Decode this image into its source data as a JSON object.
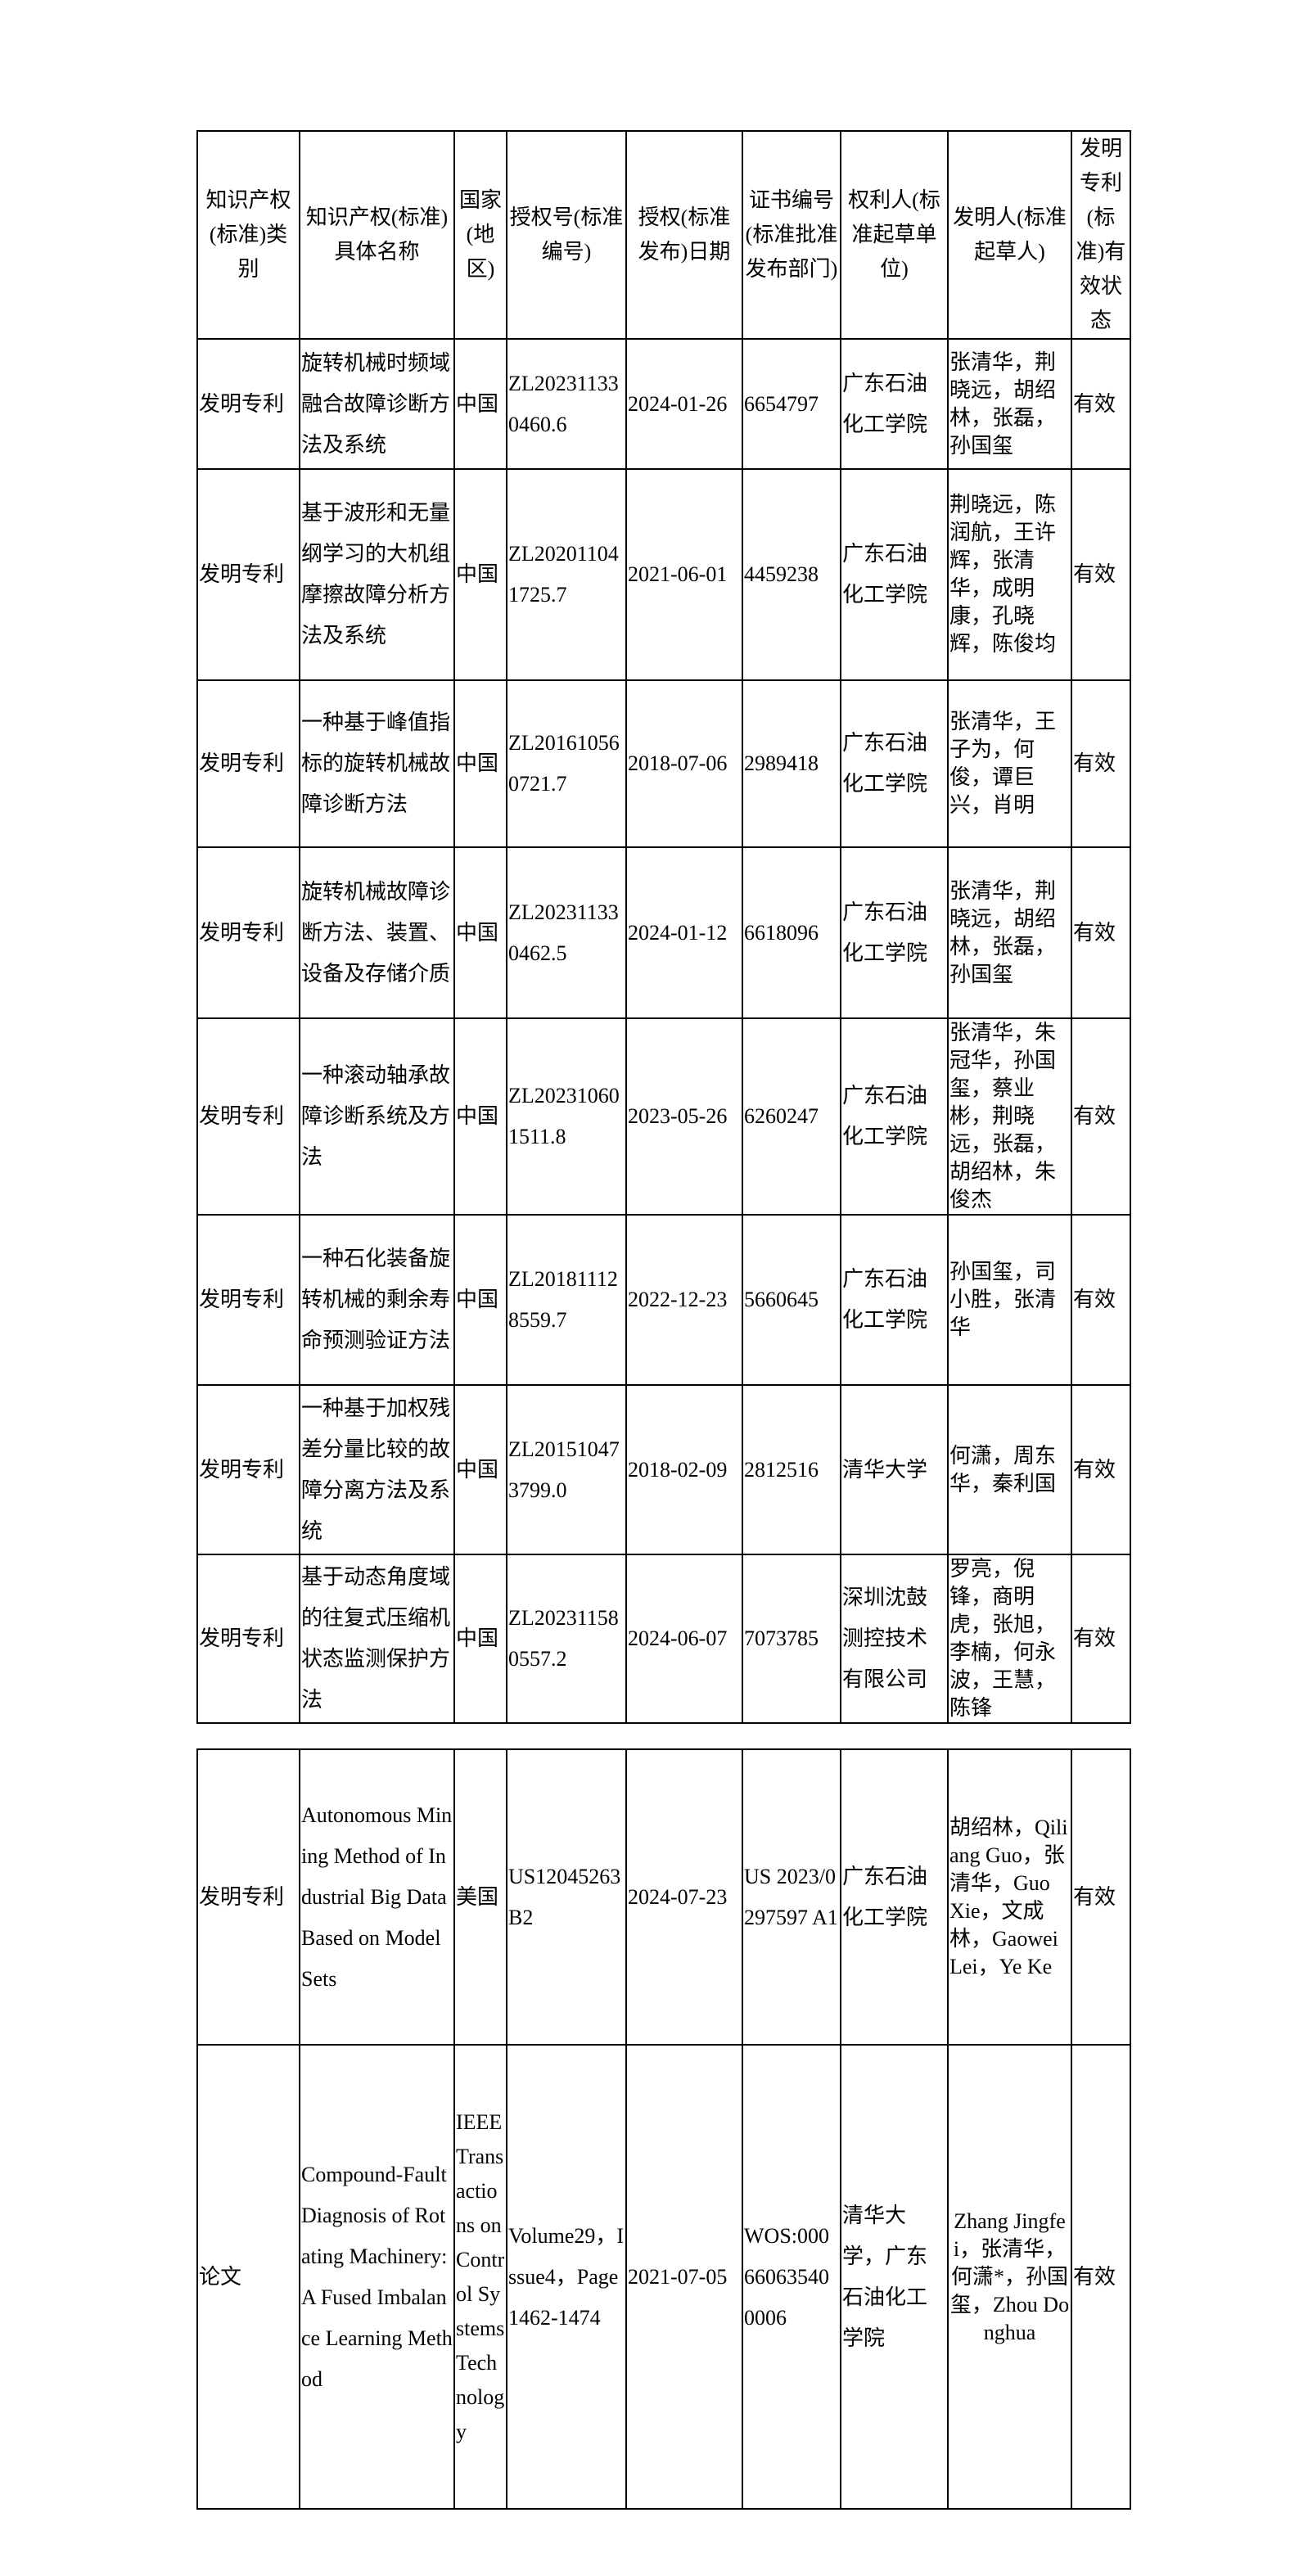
{
  "table1": {
    "header": [
      "知识产权(标准)类别",
      "知识产权(标准)具体名称",
      "国家(地区)",
      "授权号(标准编号)",
      "授权(标准发布)日期",
      "证书编号(标准批准发布部门)",
      "权利人(标准起草单位)",
      "发明人(标准起草人)",
      "发明专利(标准)有效状态"
    ],
    "rows": [
      [
        "发明专利",
        "旋转机械时频域融合故障诊断方法及系统",
        "中国",
        "ZL202311330460.6",
        "2024-01-26",
        "6654797",
        "广东石油化工学院",
        "张清华，荆晓远，胡绍林，张磊，孙国玺",
        "有效"
      ],
      [
        "发明专利",
        "基于波形和无量纲学习的大机组摩擦故障分析方法及系统",
        "中国",
        "ZL202011041725.7",
        "2021-06-01",
        "4459238",
        "广东石油化工学院",
        "荆晓远，陈润航，王许辉，张清华，成明康，孔晓辉，陈俊均",
        "有效"
      ],
      [
        "发明专利",
        "一种基于峰值指标的旋转机械故障诊断方法",
        "中国",
        "ZL201610560721.7",
        "2018-07-06",
        "2989418",
        "广东石油化工学院",
        "张清华，王子为，何俊，谭巨兴，肖明",
        "有效"
      ],
      [
        "发明专利",
        "旋转机械故障诊断方法、装置、设备及存储介质",
        "中国",
        "ZL202311330462.5",
        "2024-01-12",
        "6618096",
        "广东石油化工学院",
        "张清华，荆晓远，胡绍林，张磊，孙国玺",
        "有效"
      ],
      [
        "发明专利",
        "一种滚动轴承故障诊断系统及方法",
        "中国",
        "ZL202310601511.8",
        "2023-05-26",
        "6260247",
        "广东石油化工学院",
        "张清华，朱冠华，孙国玺，蔡业彬，荆晓远，张磊，胡绍林，朱俊杰",
        "有效"
      ],
      [
        "发明专利",
        "一种石化装备旋转机械的剩余寿命预测验证方法",
        "中国",
        "ZL201811128559.7",
        "2022-12-23",
        "5660645",
        "广东石油化工学院",
        "孙国玺，司小胜，张清华",
        "有效"
      ],
      [
        "发明专利",
        "一种基于加权残差分量比较的故障分离方法及系统",
        "中国",
        "ZL201510473799.0",
        "2018-02-09",
        "2812516",
        "清华大学",
        "何潇，周东华，秦利国",
        "有效"
      ],
      [
        "发明专利",
        "基于动态角度域的往复式压缩机状态监测保护方法",
        "中国",
        "ZL202311580557.2",
        "2024-06-07",
        "7073785",
        "深圳沈鼓测控技术有限公司",
        "罗亮，倪锋，商明虎，张旭，李楠，何永波，王慧，陈锋",
        "有效"
      ]
    ]
  },
  "table2": {
    "rows": [
      [
        "发明专利",
        "Autonomous Mining Method of Industrial Big Data Based on Model Sets",
        "美国",
        "US12045263B2",
        "2024-07-23",
        "US 2023/0297597 A1",
        "广东石油化工学院",
        "胡绍林，Qiliang Guo，张清华，Guo Xie，文成林，Gaowei Lei，Ye Ke",
        "有效"
      ],
      [
        "论文",
        "Compound-Fault Diagnosis of Rotating Machinery: A Fused Imbalance Learning Method",
        "IEEE Transactions on Control Systems Technology",
        "Volume29，Issue4，Page1462-1474",
        "2021-07-05",
        "WOS:000660635400006",
        "清华大学，广东石油化工学院",
        "Zhang Jingfei，张清华，何潇*，孙国玺，Zhou Donghua",
        "有效"
      ]
    ]
  }
}
